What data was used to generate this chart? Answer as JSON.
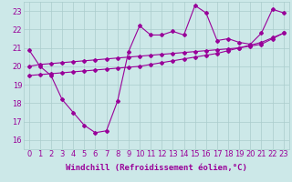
{
  "xlabel": "Windchill (Refroidissement éolien,°C)",
  "x_values": [
    0,
    1,
    2,
    3,
    4,
    5,
    6,
    7,
    8,
    9,
    10,
    11,
    12,
    13,
    14,
    15,
    16,
    17,
    18,
    19,
    20,
    21,
    22,
    23
  ],
  "line1_y": [
    20.9,
    20.0,
    19.5,
    18.2,
    17.5,
    16.8,
    16.4,
    16.5,
    18.1,
    20.8,
    22.2,
    21.7,
    21.7,
    21.9,
    21.7,
    23.3,
    22.9,
    21.4,
    21.5,
    21.3,
    21.2,
    21.8,
    23.1,
    22.9
  ],
  "line2_y": [
    20.0,
    20.1,
    20.15,
    20.2,
    20.25,
    20.3,
    20.35,
    20.4,
    20.45,
    20.5,
    20.55,
    20.6,
    20.65,
    20.7,
    20.75,
    20.8,
    20.85,
    20.9,
    20.95,
    21.0,
    21.1,
    21.2,
    21.5,
    21.8
  ],
  "line3_y": [
    19.5,
    19.55,
    19.6,
    19.65,
    19.7,
    19.75,
    19.8,
    19.85,
    19.9,
    19.95,
    20.0,
    20.1,
    20.2,
    20.3,
    20.4,
    20.5,
    20.6,
    20.7,
    20.85,
    21.0,
    21.15,
    21.3,
    21.55,
    21.8
  ],
  "line_color": "#990099",
  "bg_color": "#cce8e8",
  "grid_color": "#aacccc",
  "ylim": [
    15.5,
    23.5
  ],
  "xlim": [
    -0.5,
    23.5
  ],
  "yticks": [
    16,
    17,
    18,
    19,
    20,
    21,
    22,
    23
  ],
  "xticks": [
    0,
    1,
    2,
    3,
    4,
    5,
    6,
    7,
    8,
    9,
    10,
    11,
    12,
    13,
    14,
    15,
    16,
    17,
    18,
    19,
    20,
    21,
    22,
    23
  ],
  "marker": "D",
  "markersize": 2.0,
  "linewidth": 0.8,
  "xlabel_fontsize": 6.5,
  "tick_fontsize": 6.0
}
